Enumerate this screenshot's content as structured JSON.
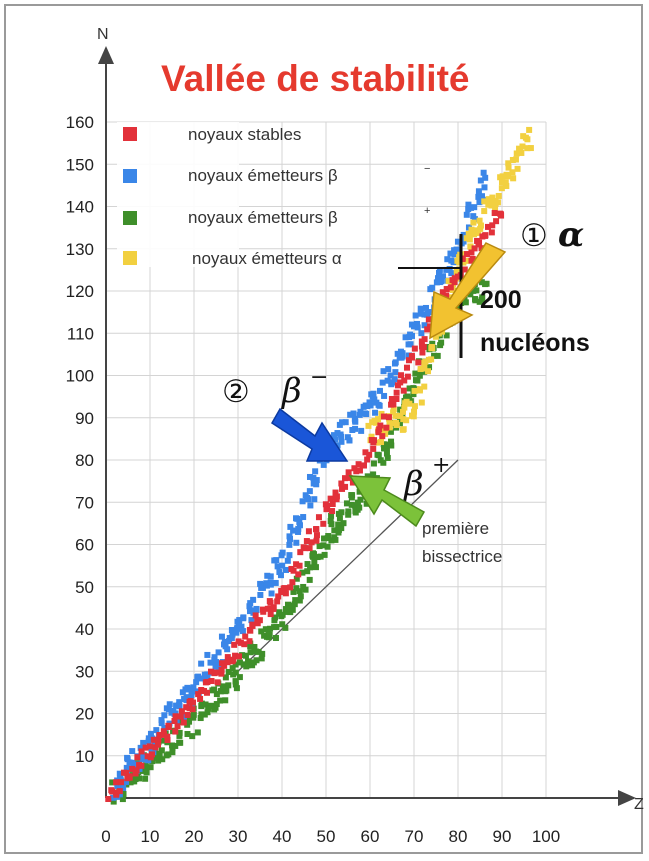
{
  "chart_data": {
    "type": "scatter",
    "title": "Vallée de stabilité",
    "xlabel": "Z",
    "ylabel": "N",
    "xlim": [
      0,
      100
    ],
    "ylim": [
      0,
      160
    ],
    "x_ticks": [
      "0",
      "10",
      "20",
      "30",
      "40",
      "50",
      "60",
      "70",
      "80",
      "90",
      "100"
    ],
    "y_ticks": [
      "10",
      "20",
      "30",
      "40",
      "50",
      "60",
      "70",
      "80",
      "90",
      "100",
      "110",
      "120",
      "130",
      "140",
      "150",
      "160"
    ],
    "grid": true,
    "legend_position": "top-left",
    "series": [
      {
        "name": "noyaux stables",
        "superscript": "",
        "color": "#e2313a",
        "band": [
          [
            1,
            1
          ],
          [
            10,
            11
          ],
          [
            20,
            22
          ],
          [
            30,
            36
          ],
          [
            40,
            48
          ],
          [
            50,
            68
          ],
          [
            60,
            82
          ],
          [
            70,
            104
          ],
          [
            80,
            124
          ],
          [
            90,
            140
          ]
        ]
      },
      {
        "name": "noyaux émetteurs β",
        "superscript": "−",
        "color": "#3a86e8",
        "band": [
          [
            2,
            3
          ],
          [
            10,
            13
          ],
          [
            20,
            26
          ],
          [
            30,
            40
          ],
          [
            40,
            56
          ],
          [
            50,
            82
          ],
          [
            60,
            92
          ],
          [
            70,
            110
          ],
          [
            80,
            130
          ],
          [
            86,
            146
          ]
        ]
      },
      {
        "name": "noyaux émetteurs β",
        "superscript": "+",
        "color": "#3f8f2a",
        "band": [
          [
            2,
            1
          ],
          [
            10,
            9
          ],
          [
            20,
            18
          ],
          [
            30,
            30
          ],
          [
            40,
            42
          ],
          [
            50,
            62
          ],
          [
            60,
            74
          ],
          [
            70,
            98
          ],
          [
            80,
            118
          ],
          [
            86,
            120
          ]
        ]
      },
      {
        "name": "noyaux émetteurs α",
        "superscript": "",
        "color": "#f2d040",
        "band": [
          [
            60,
            86
          ],
          [
            70,
            92
          ],
          [
            80,
            126
          ],
          [
            88,
            142
          ],
          [
            96,
            155
          ]
        ]
      }
    ],
    "reference_line": {
      "label_line1": "première",
      "label_line2": "bissectrice",
      "from": [
        30,
        30
      ],
      "to": [
        80,
        80
      ]
    },
    "annotations": [
      {
        "id": "alpha",
        "circled": "①",
        "greek": "α",
        "label": ""
      },
      {
        "id": "beta_minus",
        "circled": "②",
        "greek": "β",
        "superscript": "−"
      },
      {
        "id": "beta_plus",
        "greek": "β",
        "superscript": "+"
      },
      {
        "id": "nucleons",
        "line1": "200",
        "line2": "nucléons"
      }
    ],
    "arrow_colors": {
      "alpha": "#f2c230",
      "beta_minus": "#1a56d8",
      "beta_plus": "#7cc23a"
    }
  }
}
